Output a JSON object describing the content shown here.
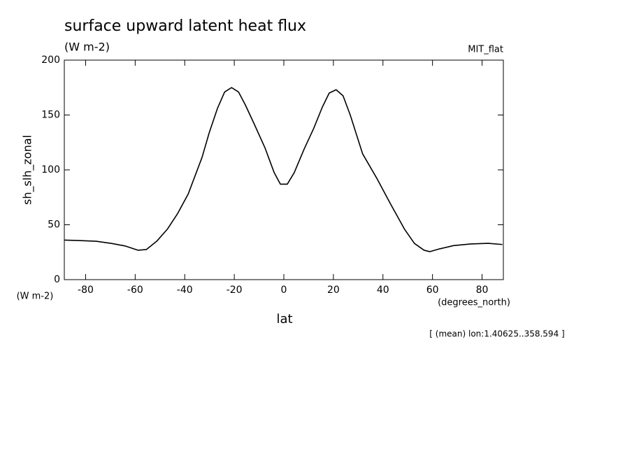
{
  "chart_data": {
    "type": "line",
    "title": "surface upward latent heat flux",
    "subtitle": "(W m-2)",
    "dataset": "MIT_flat",
    "y_label": "sh_slh_zonal",
    "y_units": "(W m-2)",
    "x_label": "lat",
    "x_units": "(degrees_north)",
    "annotation": "[ (mean) lon:1.40625..358.594 ]",
    "x": [
      -88.6,
      -83.7,
      -75.8,
      -69.6,
      -63.9,
      -58.9,
      -55.5,
      -51.3,
      -47,
      -42.8,
      -38.6,
      -33,
      -30.1,
      -26.8,
      -23.9,
      -21.1,
      -18.3,
      -15.5,
      -11.8,
      -7.6,
      -3.9,
      -1.4,
      1.4,
      4.2,
      8.2,
      12.1,
      15.5,
      18.3,
      21.1,
      23.9,
      26.8,
      31.8,
      37.5,
      43.1,
      48.7,
      52.7,
      56.6,
      58.9,
      62.8,
      68.5,
      75.5,
      82.5,
      88.2
    ],
    "series": [
      {
        "name": "sh_slh_zonal",
        "color": "#000000",
        "values": [
          36,
          35.7,
          35,
          33,
          30.6,
          26.8,
          27.4,
          35,
          46,
          60.5,
          78,
          111.5,
          134,
          156,
          171,
          175,
          171,
          159,
          141,
          120,
          97.5,
          87,
          87,
          97.5,
          119,
          138,
          157,
          170,
          173,
          167.5,
          150,
          114.6,
          92.4,
          68.8,
          46,
          33,
          26.8,
          25.5,
          28,
          31,
          32.5,
          33.1,
          32
        ]
      }
    ],
    "xlim": [
      -88.6,
      88.6
    ],
    "xticks": [
      -80,
      -60,
      -40,
      -20,
      0,
      20,
      40,
      60,
      80
    ],
    "ylim": [
      0,
      200
    ],
    "yticks": [
      0,
      50,
      100,
      150,
      200
    ]
  }
}
